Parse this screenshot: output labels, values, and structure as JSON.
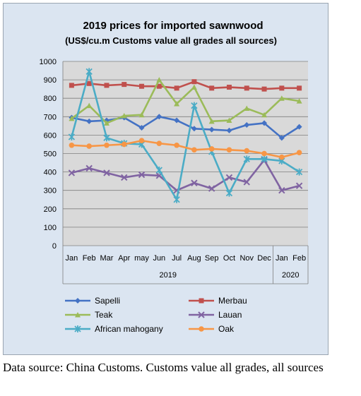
{
  "chart_data": {
    "type": "line",
    "title": "2019 prices for imported sawnwood",
    "subtitle": "(US$/cu.m Customs value all grades all sources)",
    "categories": [
      "Jan",
      "Feb",
      "Mar",
      "Apr",
      "may",
      "Jun",
      "Jul",
      "Aug",
      "Sep",
      "Oct",
      "Nov",
      "Dec",
      "Jan",
      "Feb"
    ],
    "category_groups": [
      {
        "label": "2019",
        "span": 12
      },
      {
        "label": "2020",
        "span": 2
      }
    ],
    "ylim": [
      0,
      1000
    ],
    "yticks": [
      0,
      100,
      200,
      300,
      400,
      500,
      600,
      700,
      800,
      900,
      1000
    ],
    "grid": "horizontal",
    "legend_position": "bottom",
    "series": [
      {
        "name": "Sapelli",
        "color": "#4472c4",
        "marker": "diamond",
        "values": [
          695,
          675,
          680,
          695,
          640,
          700,
          680,
          635,
          630,
          625,
          655,
          665,
          585,
          645
        ]
      },
      {
        "name": "Merbau",
        "color": "#c0504d",
        "marker": "square",
        "values": [
          870,
          880,
          870,
          875,
          865,
          865,
          855,
          890,
          855,
          860,
          855,
          850,
          855,
          855
        ]
      },
      {
        "name": "Teak",
        "color": "#9bbb59",
        "marker": "triangle",
        "values": [
          690,
          760,
          665,
          705,
          710,
          900,
          770,
          860,
          675,
          680,
          745,
          710,
          800,
          785
        ]
      },
      {
        "name": "Lauan",
        "color": "#8064a2",
        "marker": "x",
        "values": [
          395,
          420,
          395,
          370,
          385,
          380,
          300,
          340,
          310,
          370,
          345,
          465,
          300,
          325
        ]
      },
      {
        "name": "African mahogany",
        "color": "#4bacc6",
        "marker": "star",
        "values": [
          590,
          945,
          585,
          555,
          550,
          410,
          250,
          760,
          510,
          285,
          470,
          470,
          460,
          400
        ]
      },
      {
        "name": "Oak",
        "color": "#f79646",
        "marker": "circle",
        "values": [
          545,
          540,
          545,
          550,
          570,
          555,
          545,
          520,
          525,
          520,
          515,
          500,
          480,
          505
        ]
      }
    ]
  },
  "caption": "Data source: China Customs. Customs value all grades, all sources"
}
